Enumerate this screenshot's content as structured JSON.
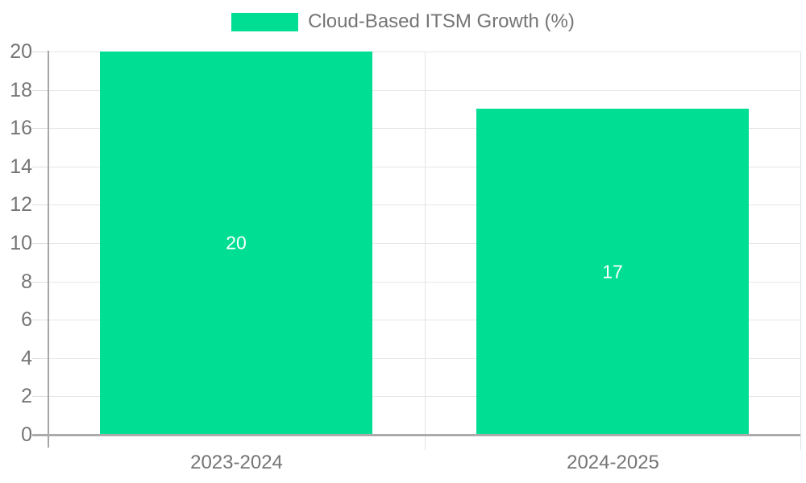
{
  "legend": {
    "label": "Cloud-Based ITSM Growth (%)"
  },
  "chart_data": {
    "type": "bar",
    "categories": [
      "2023-2024",
      "2024-2025"
    ],
    "values": [
      20,
      17
    ],
    "title": "",
    "legend_entries": [
      "Cloud-Based ITSM Growth (%)"
    ],
    "legend_position": "top-center",
    "xlabel": "",
    "ylabel": "",
    "ylim": [
      0,
      20
    ],
    "ytick_step": 2,
    "grid": true,
    "colors": {
      "bar": "#00DE94",
      "value_label": "#FFFFFF",
      "axis": "#ABABAB",
      "gridline": "#E6E6E6",
      "tick_label": "#757575"
    },
    "value_labels_shown": true
  }
}
